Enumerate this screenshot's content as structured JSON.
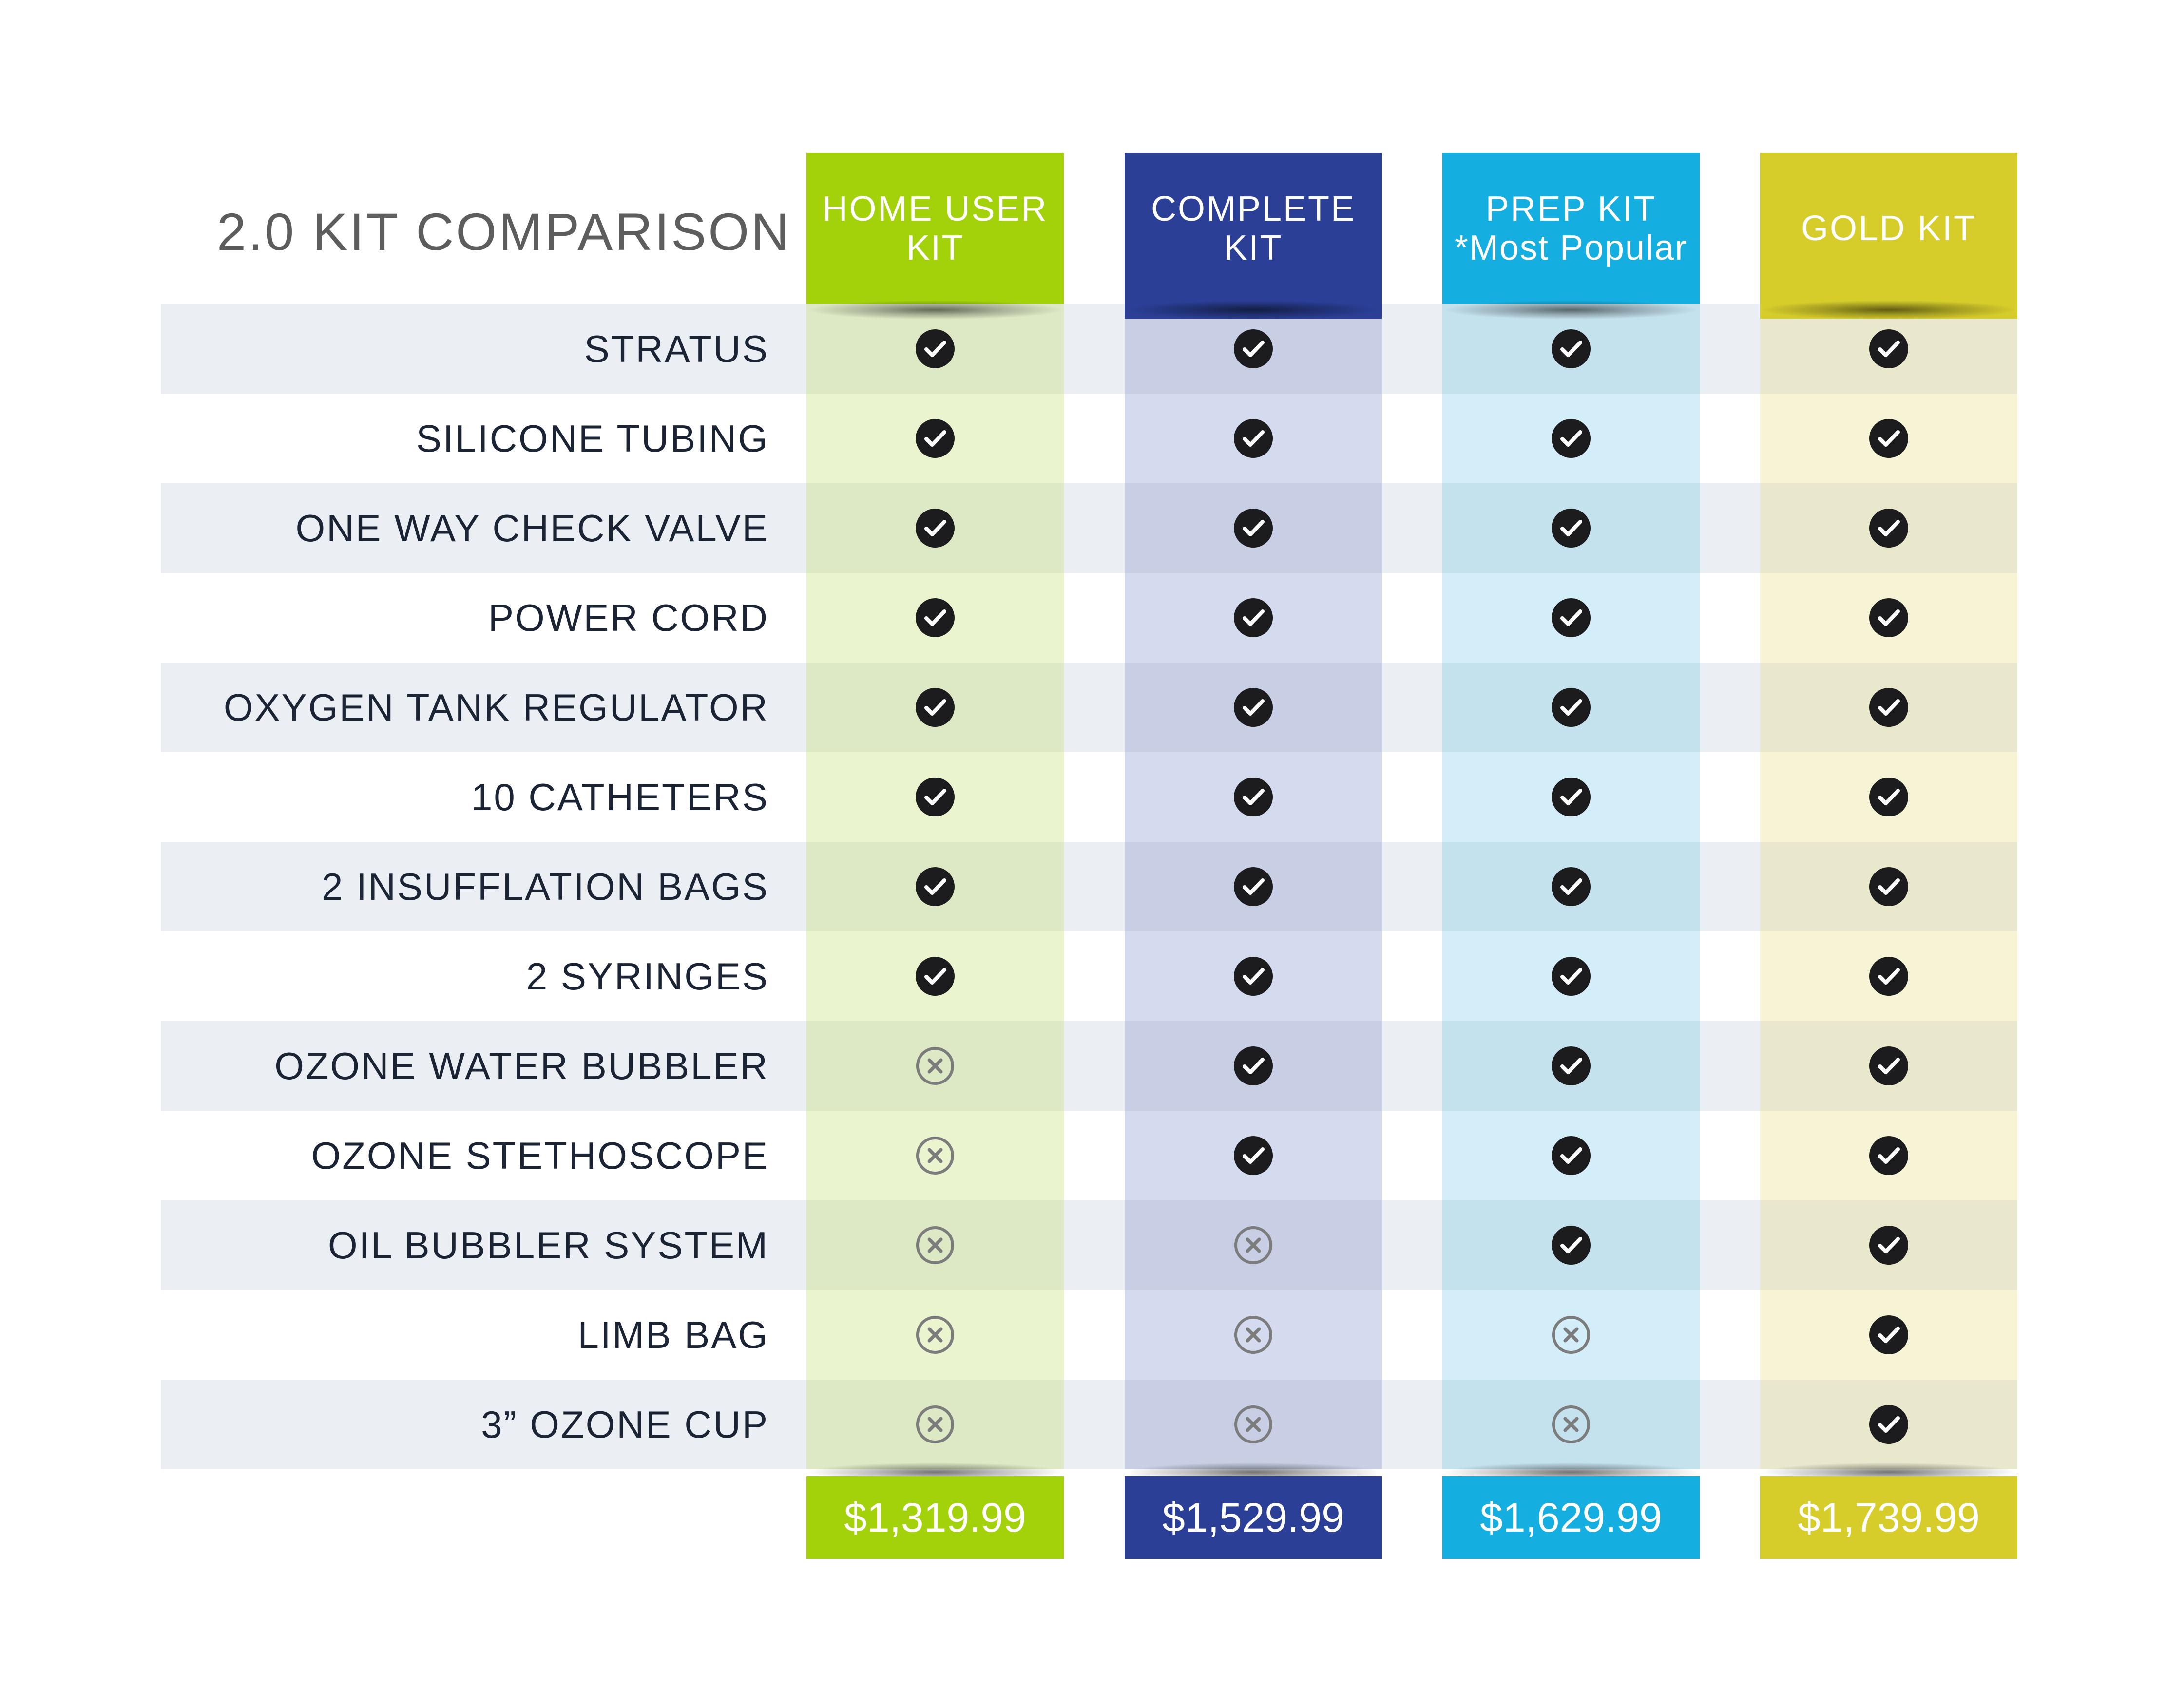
{
  "title": "2.0 KIT COMPARISON",
  "kits": [
    {
      "name_line1": "HOME USER",
      "name_line2": "KIT",
      "price": "$1,319.99",
      "color": "#a3d20a",
      "tint": "#eaf5cf",
      "tint_band": "#dde9c4"
    },
    {
      "name_line1": "COMPLETE KIT",
      "name_line2": "",
      "price": "$1,529.99",
      "color": "#2b3f96",
      "tint": "#d5dbee",
      "tint_band": "#c8cfe4"
    },
    {
      "name_line1": "PREP KIT",
      "name_line2": "*Most Popular",
      "price": "$1,629.99",
      "color": "#15aee0",
      "tint": "#d3eef8",
      "tint_band": "#c4e2ee"
    },
    {
      "name_line1": "GOLD KIT",
      "name_line2": "",
      "price": "$1,739.99",
      "color": "#d6cd2b",
      "tint": "#f7f4d6",
      "tint_band": "#e9e8cd"
    }
  ],
  "features": [
    {
      "label": "STRATUS",
      "included": [
        true,
        true,
        true,
        true
      ]
    },
    {
      "label": "SILICONE TUBING",
      "included": [
        true,
        true,
        true,
        true
      ]
    },
    {
      "label": "ONE WAY CHECK VALVE",
      "included": [
        true,
        true,
        true,
        true
      ]
    },
    {
      "label": "POWER CORD",
      "included": [
        true,
        true,
        true,
        true
      ]
    },
    {
      "label": "OXYGEN TANK REGULATOR",
      "included": [
        true,
        true,
        true,
        true
      ]
    },
    {
      "label": "10 CATHETERS",
      "included": [
        true,
        true,
        true,
        true
      ]
    },
    {
      "label": "2 INSUFFLATION BAGS",
      "included": [
        true,
        true,
        true,
        true
      ]
    },
    {
      "label": "2 SYRINGES",
      "included": [
        true,
        true,
        true,
        true
      ]
    },
    {
      "label": "OZONE WATER BUBBLER",
      "included": [
        false,
        true,
        true,
        true
      ]
    },
    {
      "label": "OZONE STETHOSCOPE",
      "included": [
        false,
        true,
        true,
        true
      ]
    },
    {
      "label": "OIL BUBBLER SYSTEM",
      "included": [
        false,
        false,
        true,
        true
      ]
    },
    {
      "label": "LIMB BAG",
      "included": [
        false,
        false,
        false,
        true
      ]
    },
    {
      "label": "3” OZONE CUP",
      "included": [
        false,
        false,
        false,
        true
      ]
    }
  ],
  "icons": {
    "included": "check-circle-icon",
    "excluded": "x-circle-icon"
  }
}
